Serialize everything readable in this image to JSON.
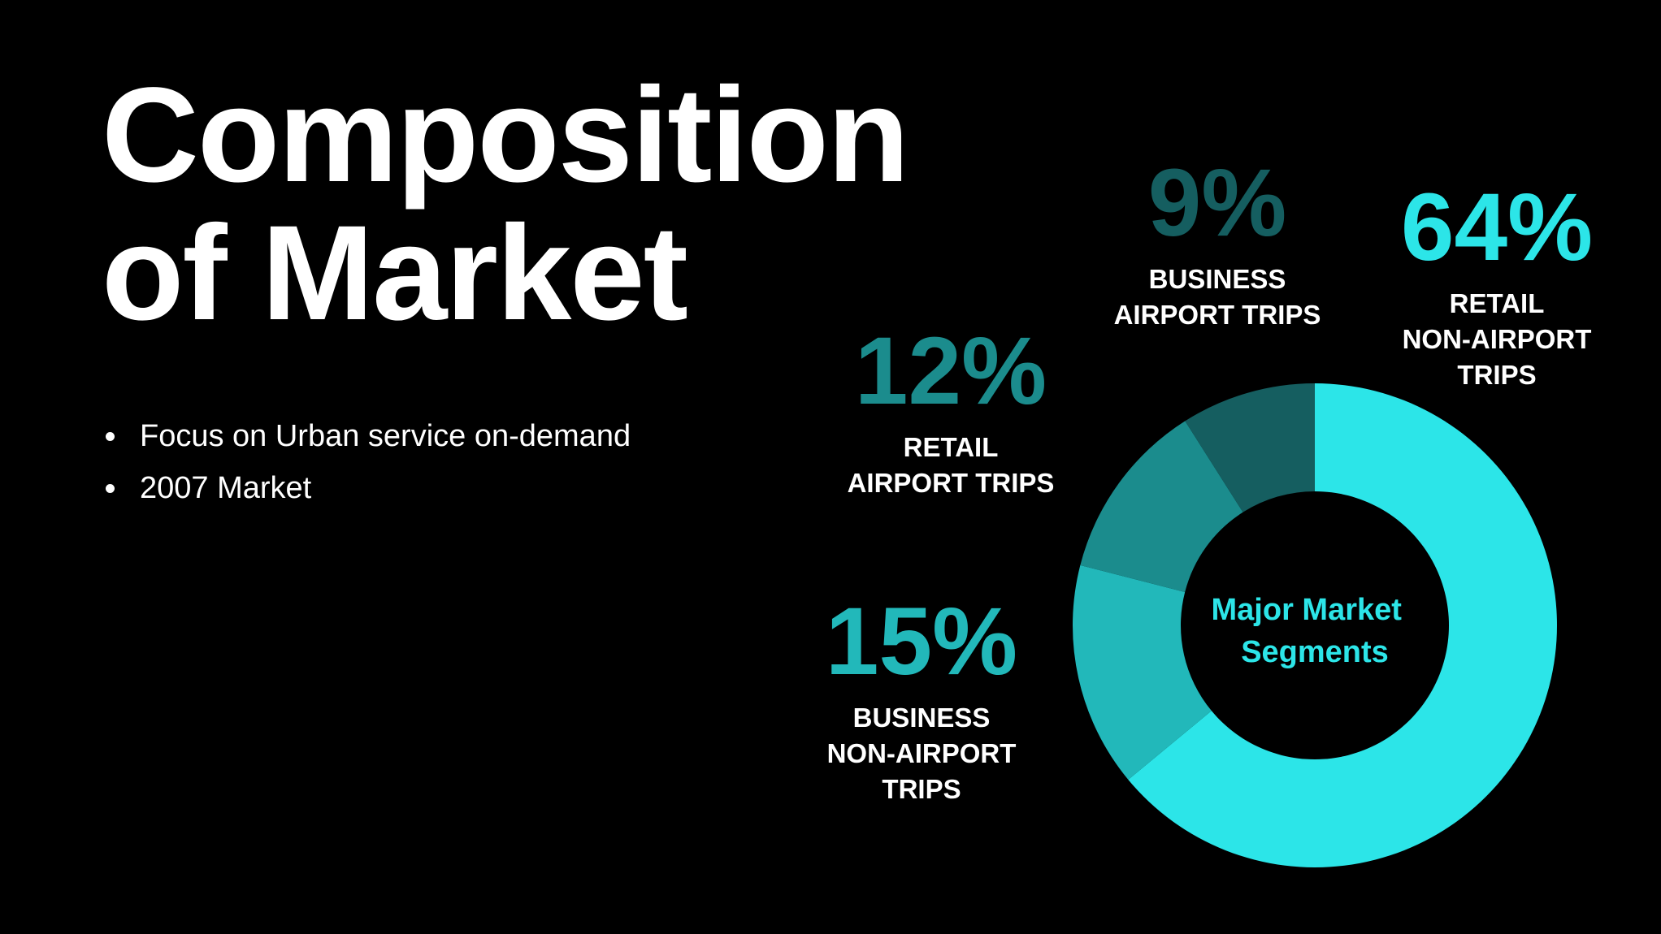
{
  "title": {
    "line1": "Composition",
    "line2": "of Market"
  },
  "bullets": [
    "Focus on Urban service on-demand",
    "2007 Market"
  ],
  "chart_data": {
    "type": "pie",
    "subtype": "donut",
    "center_label": [
      "Major Market",
      "Segments"
    ],
    "slices": [
      {
        "value": 64,
        "percent_label": "64%",
        "label_lines": [
          "RETAIL",
          "NON-AIRPORT",
          "TRIPS"
        ],
        "color": "#2ce5e8"
      },
      {
        "value": 15,
        "percent_label": "15%",
        "label_lines": [
          "BUSINESS",
          "NON-AIRPORT",
          "TRIPS"
        ],
        "color": "#22b8ba"
      },
      {
        "value": 12,
        "percent_label": "12%",
        "label_lines": [
          "RETAIL",
          "AIRPORT TRIPS"
        ],
        "color": "#1b8c8d"
      },
      {
        "value": 9,
        "percent_label": "9%",
        "label_lines": [
          "BUSINESS",
          "AIRPORT TRIPS"
        ],
        "color": "#155e60"
      }
    ]
  },
  "colors": {
    "background": "#000000",
    "text": "#ffffff",
    "accent": "#2ce5e8"
  }
}
